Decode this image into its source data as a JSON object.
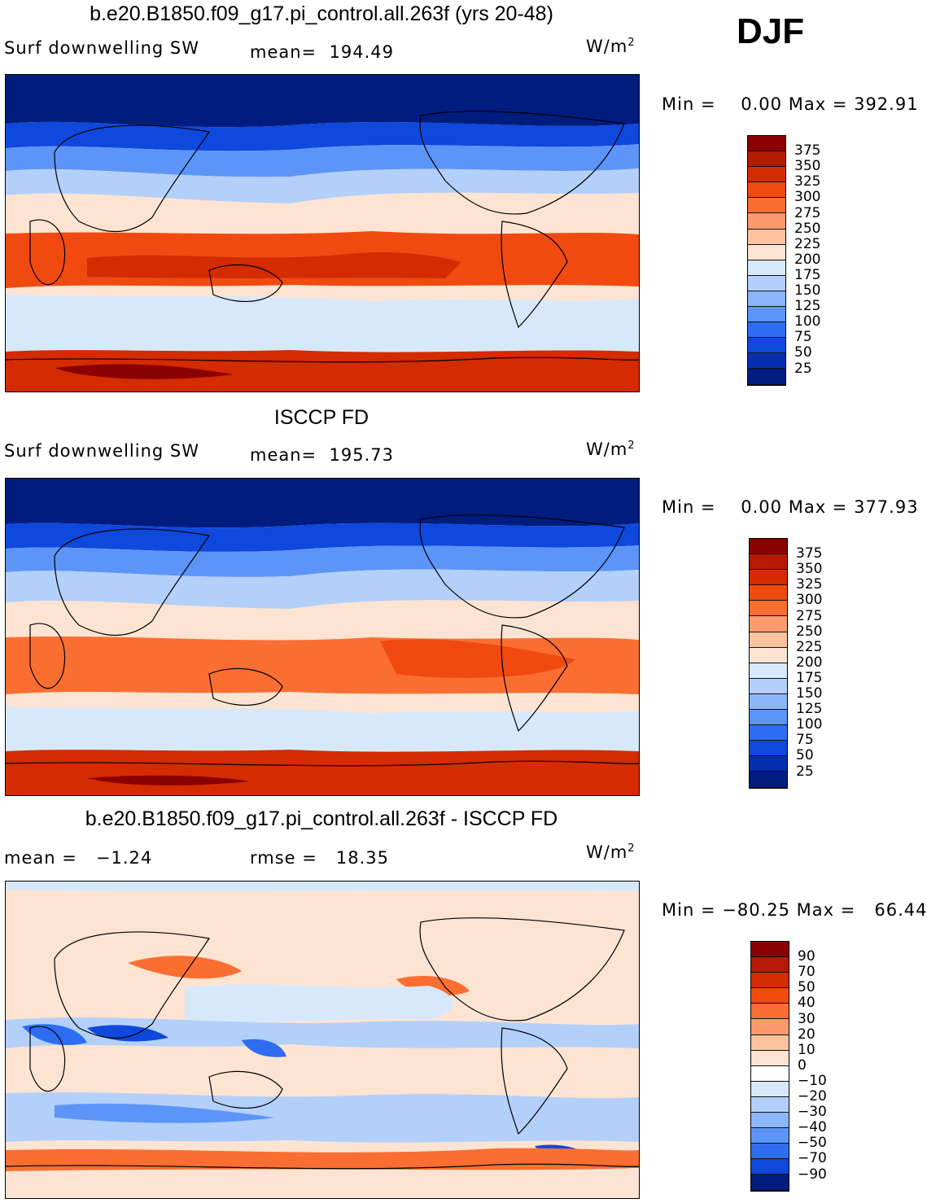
{
  "season": "DJF",
  "units_text": "W/m",
  "units_exp": "2",
  "panels": [
    {
      "title": "b.e20.B1850.f09_g17.pi_control.all.263f (yrs 20-48)",
      "var_label": "Surf downwelling SW",
      "stat_label": "mean=",
      "stat_value": "194.49",
      "min_label": "Min =",
      "min_value": "0.00",
      "max_label": "Max =",
      "max_value": "392.91",
      "colorbar_labels": [
        "375",
        "350",
        "325",
        "300",
        "275",
        "250",
        "225",
        "200",
        "175",
        "150",
        "125",
        "100",
        "75",
        "50",
        "25"
      ],
      "colorbar_colors": [
        "#8b0000",
        "#b31a00",
        "#d42b00",
        "#f04a10",
        "#fa6e32",
        "#fc9a6e",
        "#fdc39f",
        "#fde4d2",
        "#d8e8fb",
        "#b3d0fb",
        "#8cb6fb",
        "#5c95f7",
        "#2e6df2",
        "#0f48dc",
        "#052fae",
        "#001c7f"
      ]
    },
    {
      "title": "ISCCP FD",
      "var_label": "Surf downwelling SW",
      "stat_label": "mean=",
      "stat_value": "195.73",
      "min_label": "Min =",
      "min_value": "0.00",
      "max_label": "Max =",
      "max_value": "377.93",
      "colorbar_labels": [
        "375",
        "350",
        "325",
        "300",
        "275",
        "250",
        "225",
        "200",
        "175",
        "150",
        "125",
        "100",
        "75",
        "50",
        "25"
      ],
      "colorbar_colors": [
        "#8b0000",
        "#b31a00",
        "#d42b00",
        "#f04a10",
        "#fa6e32",
        "#fc9a6e",
        "#fdc39f",
        "#fde4d2",
        "#d8e8fb",
        "#b3d0fb",
        "#8cb6fb",
        "#5c95f7",
        "#2e6df2",
        "#0f48dc",
        "#052fae",
        "#001c7f"
      ]
    },
    {
      "title": "b.e20.B1850.f09_g17.pi_control.all.263f - ISCCP FD",
      "var_label": "mean =",
      "var_value": "−1.24",
      "stat_label": "rmse =",
      "stat_value": "18.35",
      "min_label": "Min =",
      "min_value": "−80.25",
      "max_label": "Max =",
      "max_value": "66.44",
      "colorbar_labels": [
        "90",
        "70",
        "50",
        "40",
        "30",
        "20",
        "10",
        "0",
        "−10",
        "−20",
        "−30",
        "−40",
        "−50",
        "−70",
        "−90"
      ],
      "colorbar_colors": [
        "#8b0000",
        "#b31a00",
        "#d42b00",
        "#f04a10",
        "#fa6e32",
        "#fc9a6e",
        "#fdc39f",
        "#fde4d2",
        "#ffffff",
        "#d8e8fb",
        "#b3d0fb",
        "#8cb6fb",
        "#5c95f7",
        "#2e6df2",
        "#0f48dc",
        "#001c7f"
      ]
    }
  ]
}
